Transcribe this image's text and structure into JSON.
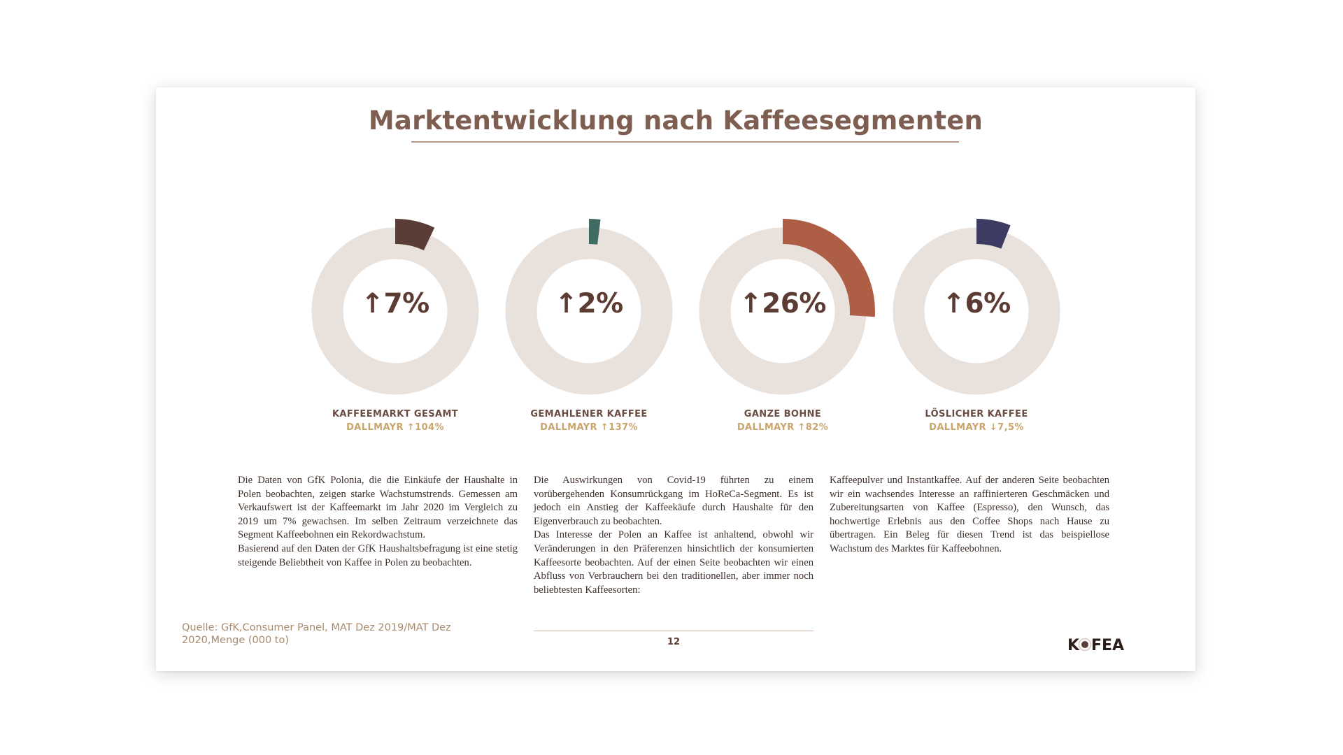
{
  "title": "Marktentwicklung nach Kaffeesegmenten",
  "chart_data": [
    {
      "type": "pie",
      "variant": "donut",
      "value_percent": 7,
      "direction": "up",
      "center_label": "↑7%",
      "label": "KAFFEEMARKT GESAMT",
      "brand_note": "DALLMAYR ↑104%",
      "slice_color": "#5a3d36",
      "track_color": "#e9e1dc"
    },
    {
      "type": "pie",
      "variant": "donut",
      "value_percent": 2,
      "direction": "up",
      "center_label": "↑2%",
      "label": "GEMAHLENER KAFFEE",
      "brand_note": "DALLMAYR ↑137%",
      "slice_color": "#3f6b63",
      "track_color": "#e9e1dc"
    },
    {
      "type": "pie",
      "variant": "donut",
      "value_percent": 26,
      "direction": "up",
      "center_label": "↑26%",
      "label": "GANZE BOHNE",
      "brand_note": "DALLMAYR ↑82%",
      "slice_color": "#ad5e45",
      "track_color": "#e9e1dc"
    },
    {
      "type": "pie",
      "variant": "donut",
      "value_percent": 6,
      "direction": "up",
      "center_label": "↑6%",
      "label": "LÖSLICHER KAFFEE",
      "brand_note": "DALLMAYR ↓7,5%",
      "slice_color": "#3d3b62",
      "track_color": "#e9e1dc"
    }
  ],
  "text_columns": [
    {
      "paragraphs": [
        "Die Daten von GfK Polonia, die die Einkäufe der Haushalte in Polen beobachten, zeigen starke Wachstumstrends. Gemessen am Verkaufswert ist der Kaffeemarkt im Jahr 2020 im Vergleich zu 2019 um 7% gewachsen. Im selben Zeitraum verzeichnete das Segment Kaffeebohnen ein Rekordwachstum.",
        "Basierend auf den Daten der GfK Haushaltsbefragung ist eine stetig steigende Beliebtheit von Kaffee in Polen zu beobachten."
      ]
    },
    {
      "paragraphs": [
        "Die Auswirkungen von Covid-19 führten zu einem vorübergehenden Konsumrückgang im HoReCa-Segment. Es ist jedoch ein Anstieg der Kaffeekäufe durch Haushalte für den Eigenverbrauch zu beobachten.",
        "Das Interesse der Polen an Kaffee ist anhaltend, obwohl wir Veränderungen in den Präferenzen hinsichtlich der konsumierten Kaffeesorte beobachten. Auf der einen Seite beobachten wir einen Abfluss von Verbrauchern bei den traditionellen, aber immer noch beliebtesten Kaffeesorten:"
      ]
    },
    {
      "paragraphs": [
        "Kaffeepulver und Instantkaffee. Auf der anderen Seite beobachten wir ein wachsendes Interesse an raffinierteren Geschmäcken und Zubereitungsarten von Kaffee (Espresso), den Wunsch, das hochwertige Erlebnis aus den Coffee Shops nach Hause zu übertragen. Ein Beleg für diesen Trend ist das beispiellose Wachstum des Marktes für Kaffeebohnen."
      ]
    }
  ],
  "source": "Quelle: GfK,Consumer Panel, MAT Dez 2019/MAT Dez 2020,Menge (000 to)",
  "page_number": "12",
  "logo": {
    "text": "KOFEA",
    "color": "#2b1e1a",
    "icon": "coffee-cup-icon"
  }
}
